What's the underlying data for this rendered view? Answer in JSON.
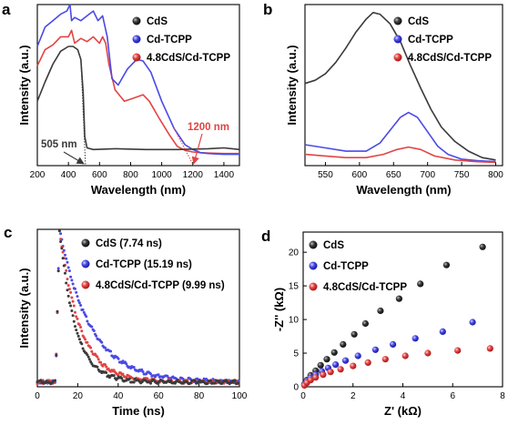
{
  "colors": {
    "CdS": "#3a3a3a",
    "Cd-TCPP": "#4a4ae6",
    "4.8CdS/Cd-TCPP": "#e24444"
  },
  "chart_data": [
    {
      "panel": "a",
      "type": "line",
      "xlabel": "Wavelength (nm)",
      "ylabel": "Intensity (a.u.)",
      "xlim": [
        200,
        1500
      ],
      "ylim": [
        0,
        1
      ],
      "xticks": [
        200,
        400,
        600,
        800,
        1000,
        1200,
        1400
      ],
      "xtick_labels": [
        "200",
        "400",
        "600",
        "800",
        "1000",
        "1200",
        "1400"
      ],
      "legend_position": "top-right",
      "series": [
        {
          "name": "CdS",
          "color": "#3a3a3a",
          "x": [
            200,
            250,
            300,
            350,
            400,
            430,
            460,
            480,
            495,
            505,
            520,
            560,
            700,
            900,
            1100,
            1300,
            1400,
            1500
          ],
          "y": [
            0.4,
            0.52,
            0.63,
            0.71,
            0.74,
            0.74,
            0.72,
            0.66,
            0.45,
            0.18,
            0.11,
            0.1,
            0.105,
            0.1,
            0.1,
            0.105,
            0.11,
            0.1
          ]
        },
        {
          "name": "Cd-TCPP",
          "color": "#4a4ae6",
          "x": [
            200,
            250,
            300,
            350,
            390,
            410,
            420,
            440,
            480,
            520,
            560,
            590,
            620,
            650,
            680,
            720,
            780,
            840,
            880,
            930,
            1000,
            1080,
            1150,
            1200,
            1250,
            1300,
            1400,
            1500
          ],
          "y": [
            0.74,
            0.86,
            0.9,
            0.94,
            0.96,
            1.0,
            0.9,
            0.92,
            0.9,
            0.93,
            0.96,
            0.9,
            0.93,
            0.8,
            0.54,
            0.5,
            0.6,
            0.66,
            0.65,
            0.58,
            0.4,
            0.23,
            0.13,
            0.1,
            0.08,
            0.075,
            0.07,
            0.07
          ]
        },
        {
          "name": "4.8CdS/Cd-TCPP",
          "color": "#e24444",
          "x": [
            200,
            250,
            300,
            350,
            400,
            420,
            440,
            480,
            520,
            560,
            600,
            620,
            640,
            660,
            700,
            760,
            820,
            880,
            920,
            980,
            1050,
            1100,
            1150,
            1200,
            1250,
            1300,
            1400,
            1500
          ],
          "y": [
            0.62,
            0.72,
            0.75,
            0.8,
            0.8,
            0.84,
            0.76,
            0.79,
            0.77,
            0.8,
            0.76,
            0.8,
            0.76,
            0.63,
            0.47,
            0.4,
            0.42,
            0.44,
            0.4,
            0.3,
            0.19,
            0.12,
            0.095,
            0.085,
            0.08,
            0.078,
            0.075,
            0.075
          ]
        }
      ],
      "annotations": [
        {
          "text": "505 nm",
          "color": "#3a3a3a",
          "x": 505
        },
        {
          "text": "1200 nm",
          "color": "#e24444",
          "x": 1200
        }
      ]
    },
    {
      "panel": "b",
      "type": "line",
      "xlabel": "Wavelength (nm)",
      "ylabel": "Intensity (a.u.)",
      "xlim": [
        520,
        810
      ],
      "ylim": [
        0,
        1
      ],
      "xticks": [
        550,
        600,
        650,
        700,
        750,
        800
      ],
      "xtick_labels": [
        "550",
        "600",
        "650",
        "700",
        "750",
        "800"
      ],
      "legend_position": "top-right",
      "series": [
        {
          "name": "CdS",
          "color": "#3a3a3a",
          "x": [
            520,
            535,
            550,
            565,
            580,
            595,
            610,
            620,
            630,
            645,
            660,
            675,
            690,
            705,
            720,
            740,
            760,
            780,
            800
          ],
          "y": [
            0.51,
            0.53,
            0.57,
            0.64,
            0.73,
            0.83,
            0.91,
            0.95,
            0.94,
            0.88,
            0.77,
            0.62,
            0.48,
            0.35,
            0.24,
            0.15,
            0.09,
            0.05,
            0.035
          ]
        },
        {
          "name": "Cd-TCPP",
          "color": "#4a4ae6",
          "x": [
            520,
            550,
            580,
            610,
            630,
            645,
            660,
            672,
            685,
            700,
            715,
            730,
            750,
            775,
            800
          ],
          "y": [
            0.13,
            0.11,
            0.09,
            0.09,
            0.14,
            0.22,
            0.3,
            0.33,
            0.3,
            0.21,
            0.12,
            0.07,
            0.04,
            0.03,
            0.025
          ]
        },
        {
          "name": "4.8CdS/Cd-TCPP",
          "color": "#e24444",
          "x": [
            520,
            550,
            580,
            610,
            635,
            655,
            672,
            690,
            710,
            740,
            770,
            800
          ],
          "y": [
            0.07,
            0.06,
            0.05,
            0.05,
            0.07,
            0.1,
            0.115,
            0.1,
            0.06,
            0.035,
            0.025,
            0.02
          ]
        }
      ]
    },
    {
      "panel": "c",
      "type": "line",
      "xlabel": "Time (ns)",
      "ylabel": "Intensity (a.u.)",
      "xlim": [
        0,
        100
      ],
      "ylim": [
        0,
        1
      ],
      "xticks": [
        0,
        20,
        40,
        60,
        80,
        100
      ],
      "xtick_labels": [
        "0",
        "20",
        "40",
        "60",
        "80",
        "100"
      ],
      "legend_position": "top-right",
      "series": [
        {
          "name": "CdS (7.74 ns)",
          "color": "#3a3a3a",
          "tau": 7.74,
          "t0": 11
        },
        {
          "name": "Cd-TCPP (15.19 ns)",
          "color": "#4a4ae6",
          "tau": 15.19,
          "t0": 11
        },
        {
          "name": "4.8CdS/Cd-TCPP (9.99 ns)",
          "color": "#e24444",
          "tau": 9.99,
          "t0": 11
        }
      ]
    },
    {
      "panel": "d",
      "type": "scatter",
      "xlabel": "Z' (kΩ)",
      "ylabel": "-Z'' (kΩ)",
      "xlim": [
        0,
        8
      ],
      "ylim": [
        0,
        23
      ],
      "xticks": [
        0,
        2,
        4,
        6,
        8
      ],
      "xtick_labels": [
        "0",
        "2",
        "4",
        "6",
        "8"
      ],
      "yticks": [
        0,
        5,
        10,
        15,
        20
      ],
      "ytick_labels": [
        "0",
        "5",
        "10",
        "15",
        "20"
      ],
      "legend_position": "top-left",
      "series": [
        {
          "name": "CdS",
          "color": "#3a3a3a",
          "x": [
            0.05,
            0.15,
            0.3,
            0.5,
            0.7,
            0.95,
            1.25,
            1.6,
            2.05,
            2.5,
            3.1,
            3.85,
            4.7,
            5.75,
            7.2
          ],
          "y": [
            0.4,
            1.0,
            1.7,
            2.4,
            3.2,
            4.1,
            5.1,
            6.3,
            7.8,
            9.4,
            11.3,
            13.1,
            15.3,
            18.1,
            20.8
          ]
        },
        {
          "name": "Cd-TCPP",
          "color": "#4a4ae6",
          "x": [
            0.05,
            0.15,
            0.3,
            0.5,
            0.75,
            1.0,
            1.3,
            1.7,
            2.2,
            2.9,
            3.6,
            4.5,
            5.6,
            6.8
          ],
          "y": [
            0.3,
            0.8,
            1.3,
            1.8,
            2.3,
            2.8,
            3.3,
            3.9,
            4.6,
            5.5,
            6.3,
            7.2,
            8.2,
            9.6
          ]
        },
        {
          "name": "4.8CdS/Cd-TCPP",
          "color": "#e24444",
          "x": [
            0.05,
            0.15,
            0.3,
            0.5,
            0.8,
            1.1,
            1.5,
            2.0,
            2.6,
            3.3,
            4.1,
            5.0,
            6.2,
            7.5
          ],
          "y": [
            0.2,
            0.6,
            1.0,
            1.4,
            1.8,
            2.2,
            2.6,
            3.1,
            3.6,
            4.1,
            4.6,
            5.0,
            5.4,
            5.7
          ]
        }
      ]
    }
  ]
}
